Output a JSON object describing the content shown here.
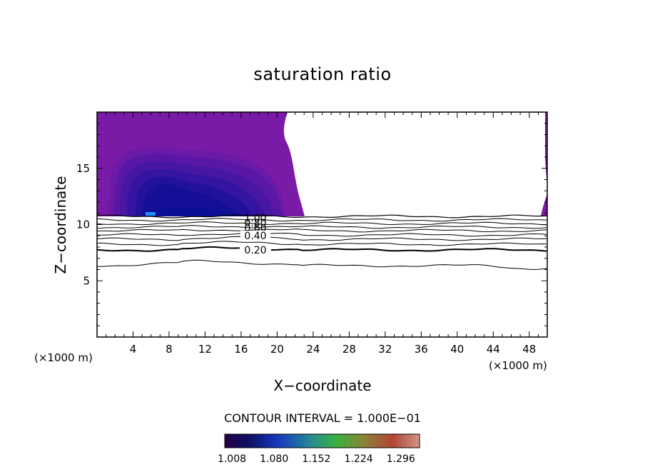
{
  "chart_data": {
    "type": "heatmap",
    "title": "saturation ratio",
    "xlabel": "X−coordinate",
    "ylabel": "Z−coordinate",
    "x_unit": "(×1000 m)",
    "z_unit": "(×1000 m)",
    "xlim": [
      0,
      50
    ],
    "ylim": [
      0,
      20
    ],
    "x_ticks": [
      4,
      8,
      12,
      16,
      20,
      24,
      28,
      32,
      36,
      40,
      44,
      48
    ],
    "y_ticks": [
      5,
      10,
      15
    ],
    "contour_interval_text": "CONTOUR INTERVAL = 1.000E−01",
    "contour_labels": [
      "1.00",
      "0.80",
      "0.60",
      "0.40",
      "0.20"
    ],
    "contour_levels": [
      1.0,
      0.9,
      0.8,
      0.7,
      0.6,
      0.5,
      0.4,
      0.3,
      0.2,
      0.1
    ],
    "colorbar": {
      "min": 1.008,
      "max": 1.34,
      "tick_labels": [
        "1.008",
        "1.080",
        "1.152",
        "1.224",
        "1.296"
      ]
    },
    "colors": {
      "low": "#30006b",
      "base_fill": "#7a1ba8",
      "min_core": "#0c0f95",
      "accent": "#1e90ff"
    }
  }
}
